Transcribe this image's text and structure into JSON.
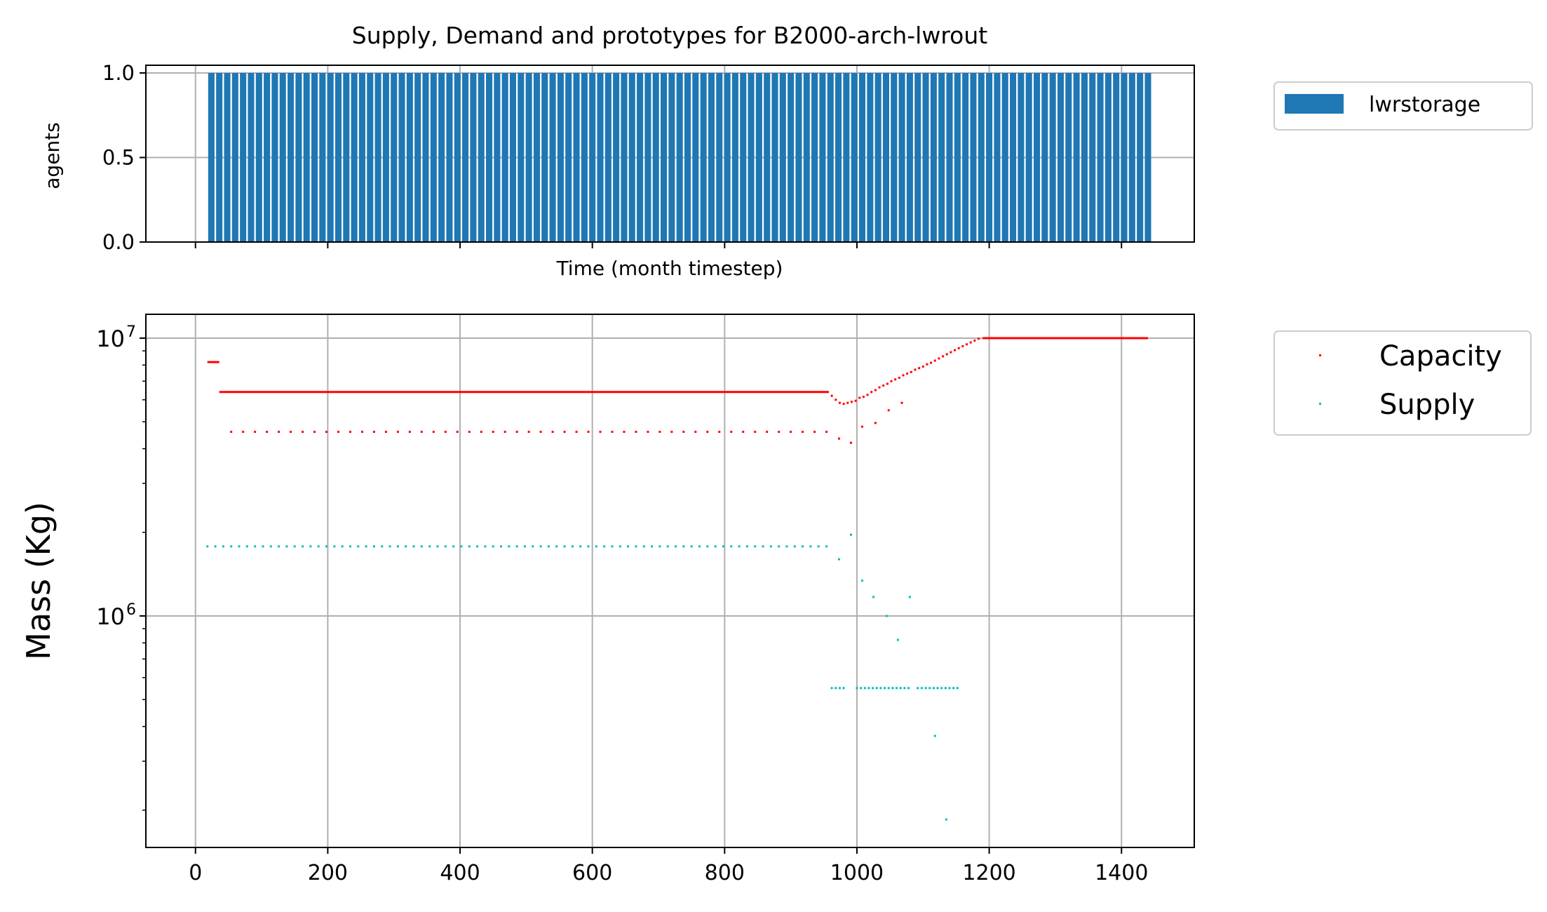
{
  "figure": {
    "title": "Supply, Demand and prototypes for B2000-arch-lwrout"
  },
  "colors": {
    "bar": "#1f77b4",
    "capacity": "#ff0000",
    "supply": "#00bfbf",
    "grid": "#b0b0b0"
  },
  "chart_data": [
    {
      "type": "bar",
      "title": "Supply, Demand and prototypes for B2000-arch-lwrout",
      "xlabel": "Time (month timestep)",
      "ylabel": "agents",
      "xlim": [
        -75,
        1510
      ],
      "ylim": [
        0,
        1.0
      ],
      "yticks": [
        0.0,
        0.5,
        1.0
      ],
      "ytick_labels": [
        "0.0",
        "0.5",
        "1.0"
      ],
      "xticks": [
        0,
        200,
        400,
        600,
        800,
        1000,
        1200,
        1400
      ],
      "grid": true,
      "legend": {
        "position": "outside-right-top",
        "entries": [
          {
            "label": "lwrstorage"
          }
        ]
      },
      "series": [
        {
          "name": "lwrstorage",
          "bar_start": 24,
          "bar_end": 1440,
          "bar_step": 12,
          "bar_width": 9.6,
          "value": 1.0
        }
      ]
    },
    {
      "type": "scatter",
      "xlabel": "",
      "ylabel": "Mass (Kg)",
      "yscale": "log",
      "xlim": [
        -75,
        1510
      ],
      "ylim": [
        150000,
        12000000
      ],
      "xticks": [
        0,
        200,
        400,
        600,
        800,
        1000,
        1200,
        1400
      ],
      "xtick_labels": [
        "0",
        "200",
        "400",
        "600",
        "800",
        "1000",
        "1200",
        "1400"
      ],
      "yticks": [
        1000000,
        10000000
      ],
      "ytick_labels": [
        {
          "base": "10",
          "exp": "6"
        },
        {
          "base": "10",
          "exp": "7"
        }
      ],
      "grid": true,
      "legend": {
        "position": "outside-right-top",
        "entries": [
          {
            "label": "Capacity"
          },
          {
            "label": "Supply"
          }
        ]
      },
      "series": [
        {
          "name": "Capacity",
          "marker": "point",
          "segments": [
            {
              "x_start": 18,
              "x_end": 36,
              "value": 8200000
            },
            {
              "x_start": 36,
              "x_end": 955,
              "value": 6400000
            },
            {
              "x_start": 1190,
              "x_end": 1440,
              "value": 10000000
            }
          ],
          "dotted": {
            "x_start": 54,
            "x_end": 954,
            "step": 18,
            "value": 4600000
          },
          "transition": [
            [
              956,
              6400000
            ],
            [
              962,
              6200000
            ],
            [
              968,
              6000000
            ],
            [
              974,
              5850000
            ],
            [
              980,
              5800000
            ],
            [
              986,
              5850000
            ],
            [
              992,
              5900000
            ],
            [
              998,
              5950000
            ],
            [
              1004,
              6100000
            ],
            [
              1010,
              6150000
            ],
            [
              1016,
              6250000
            ],
            [
              1022,
              6400000
            ],
            [
              1028,
              6500000
            ],
            [
              1034,
              6650000
            ],
            [
              1040,
              6750000
            ],
            [
              1046,
              6850000
            ],
            [
              1052,
              7000000
            ],
            [
              1058,
              7100000
            ],
            [
              1064,
              7200000
            ],
            [
              1070,
              7350000
            ],
            [
              1076,
              7450000
            ],
            [
              1082,
              7550000
            ],
            [
              1088,
              7700000
            ],
            [
              1094,
              7800000
            ],
            [
              1100,
              7900000
            ],
            [
              1106,
              8050000
            ],
            [
              1112,
              8150000
            ],
            [
              1118,
              8300000
            ],
            [
              1124,
              8450000
            ],
            [
              1130,
              8600000
            ],
            [
              1136,
              8750000
            ],
            [
              1142,
              8900000
            ],
            [
              1148,
              9050000
            ],
            [
              1154,
              9200000
            ],
            [
              1160,
              9350000
            ],
            [
              1166,
              9500000
            ],
            [
              1172,
              9650000
            ],
            [
              1178,
              9800000
            ],
            [
              1184,
              9950000
            ],
            [
              973,
              4350000
            ],
            [
              991,
              4200000
            ],
            [
              1008,
              4800000
            ],
            [
              1028,
              4950000
            ],
            [
              1048,
              5500000
            ],
            [
              1068,
              5850000
            ]
          ]
        },
        {
          "name": "Supply",
          "marker": "point",
          "dotted": {
            "x_start": 18,
            "x_end": 954,
            "step": 12,
            "value": 1780000
          },
          "points": [
            [
              962,
              550000
            ],
            [
              968,
              550000
            ],
            [
              974,
              550000
            ],
            [
              980,
              550000
            ],
            [
              973,
              1600000
            ],
            [
              991,
              1960000
            ],
            [
              1000,
              550000
            ],
            [
              1006,
              550000
            ],
            [
              1012,
              550000
            ],
            [
              1018,
              550000
            ],
            [
              1024,
              550000
            ],
            [
              1030,
              550000
            ],
            [
              1036,
              550000
            ],
            [
              1042,
              550000
            ],
            [
              1048,
              550000
            ],
            [
              1054,
              550000
            ],
            [
              1060,
              550000
            ],
            [
              1066,
              550000
            ],
            [
              1072,
              550000
            ],
            [
              1078,
              550000
            ],
            [
              1092,
              550000
            ],
            [
              1098,
              550000
            ],
            [
              1104,
              550000
            ],
            [
              1110,
              550000
            ],
            [
              1116,
              550000
            ],
            [
              1122,
              550000
            ],
            [
              1128,
              550000
            ],
            [
              1134,
              550000
            ],
            [
              1140,
              550000
            ],
            [
              1146,
              550000
            ],
            [
              1152,
              550000
            ],
            [
              1008,
              1340000
            ],
            [
              1025,
              1170000
            ],
            [
              1045,
              1000000
            ],
            [
              1062,
              820000
            ],
            [
              1080,
              1170000
            ],
            [
              1118,
              370000
            ],
            [
              1135,
              185000
            ]
          ]
        }
      ]
    }
  ]
}
